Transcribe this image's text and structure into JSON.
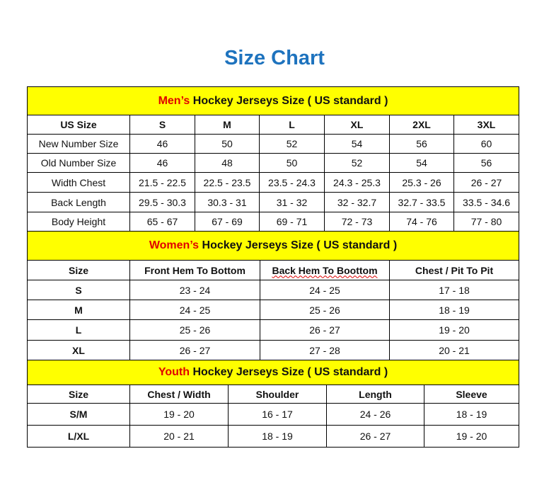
{
  "title": "Size Chart",
  "mens": {
    "band_highlight": "Men’s",
    "band_rest": " Hockey Jerseys Size ( US standard )",
    "headers": [
      "US Size",
      "S",
      "M",
      "L",
      "XL",
      "2XL",
      "3XL"
    ],
    "rows": [
      [
        "New Number Size",
        "46",
        "50",
        "52",
        "54",
        "56",
        "60"
      ],
      [
        "Old Number Size",
        "46",
        "48",
        "50",
        "52",
        "54",
        "56"
      ],
      [
        "Width Chest",
        "21.5 - 22.5",
        "22.5 - 23.5",
        "23.5 - 24.3",
        "24.3 - 25.3",
        "25.3 - 26",
        "26 - 27"
      ],
      [
        "Back Length",
        "29.5 - 30.3",
        "30.3 - 31",
        "31 - 32",
        "32 - 32.7",
        "32.7 - 33.5",
        "33.5 - 34.6"
      ],
      [
        "Body Height",
        "65 - 67",
        "67 - 69",
        "69 - 71",
        "72 - 73",
        "74 - 76",
        "77 - 80"
      ]
    ]
  },
  "womens": {
    "band_highlight": "Women’s",
    "band_rest": " Hockey Jerseys Size ( US standard )",
    "headers": [
      "Size",
      "Front Hem To Bottom",
      "Back Hem To Boottom",
      "Chest / Pit To Pit"
    ],
    "rows": [
      [
        "S",
        "23 - 24",
        "24 - 25",
        "17 - 18"
      ],
      [
        "M",
        "24 - 25",
        "25 - 26",
        "18 - 19"
      ],
      [
        "L",
        "25 - 26",
        "26 - 27",
        "19 - 20"
      ],
      [
        "XL",
        "26 - 27",
        "27 - 28",
        "20 - 21"
      ]
    ]
  },
  "youth": {
    "band_highlight": "Youth",
    "band_rest": " Hockey Jerseys Size ( US standard )",
    "headers": [
      "Size",
      "Chest / Width",
      "Shoulder",
      "Length",
      "Sleeve"
    ],
    "rows": [
      [
        "S/M",
        "19 - 20",
        "16 - 17",
        "24 - 26",
        "18 - 19"
      ],
      [
        "L/XL",
        "20 - 21",
        "18 - 19",
        "26 - 27",
        "19 - 20"
      ]
    ]
  },
  "colors": {
    "title": "#1e73be",
    "band": "#ffff00",
    "highlight": "#e00000"
  }
}
